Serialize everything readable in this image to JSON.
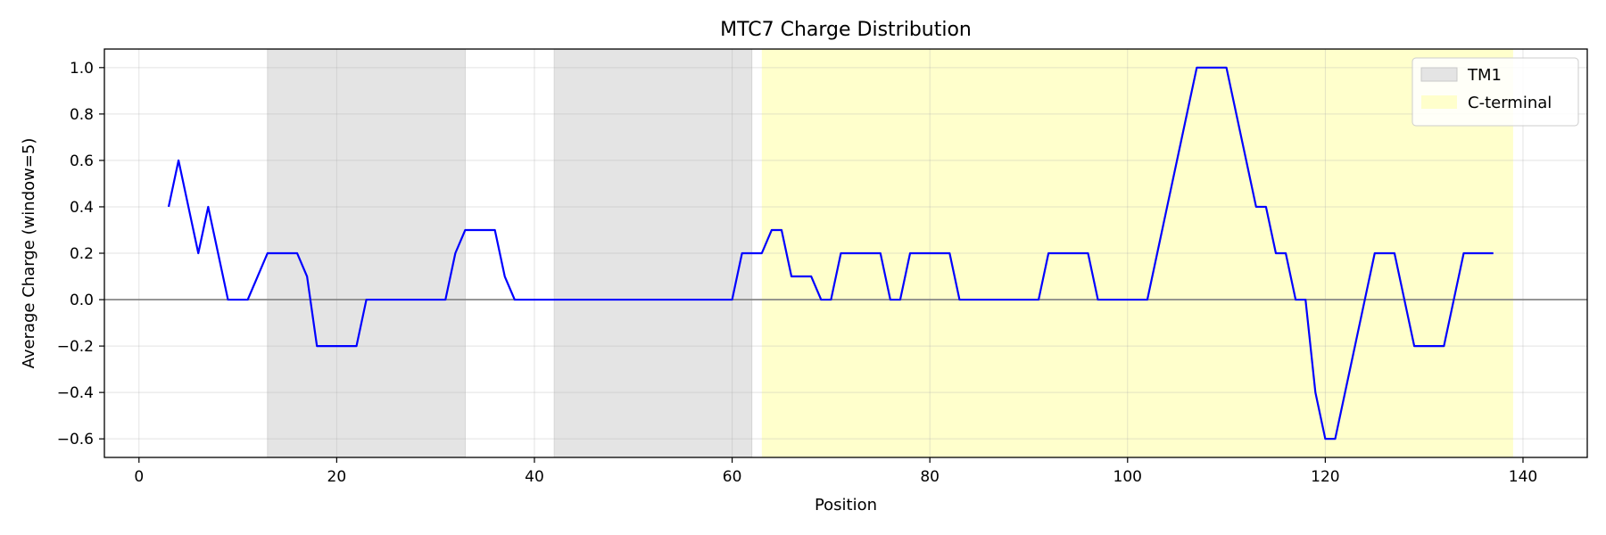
{
  "chart_data": {
    "type": "line",
    "title": "MTC7 Charge Distribution",
    "xlabel": "Position",
    "ylabel": "Average Charge (window=5)",
    "xlim": [
      -3.5,
      146.5
    ],
    "ylim": [
      -0.68,
      1.08
    ],
    "xticks": [
      0,
      20,
      40,
      60,
      80,
      100,
      120,
      140
    ],
    "yticks": [
      -0.6,
      -0.4,
      -0.2,
      0.0,
      0.2,
      0.4,
      0.6,
      0.8,
      1.0
    ],
    "grid": true,
    "legend_position": "top-right",
    "zero_line": 0,
    "regions": [
      {
        "name": "TM1",
        "start": 13,
        "end": 33,
        "color": "#e4e4e4",
        "legend": true
      },
      {
        "name": "",
        "start": 42,
        "end": 62,
        "color": "#e4e4e4",
        "legend": false
      },
      {
        "name": "C-terminal",
        "start": 63,
        "end": 139,
        "color": "#ffffcc",
        "legend": true
      }
    ],
    "series": [
      {
        "color": "#0000ff",
        "x": [
          3,
          4,
          5,
          6,
          7,
          8,
          9,
          10,
          11,
          12,
          13,
          14,
          15,
          16,
          17,
          18,
          19,
          20,
          21,
          22,
          23,
          24,
          25,
          26,
          27,
          28,
          29,
          30,
          31,
          32,
          33,
          34,
          35,
          36,
          37,
          38,
          39,
          40,
          41,
          42,
          43,
          44,
          45,
          46,
          47,
          48,
          49,
          50,
          51,
          52,
          53,
          54,
          55,
          56,
          57,
          58,
          59,
          60,
          61,
          62,
          63,
          64,
          65,
          66,
          67,
          68,
          69,
          70,
          71,
          72,
          73,
          74,
          75,
          76,
          77,
          78,
          79,
          80,
          81,
          82,
          83,
          84,
          85,
          86,
          87,
          88,
          89,
          90,
          91,
          92,
          93,
          94,
          95,
          96,
          97,
          98,
          99,
          100,
          101,
          102,
          103,
          104,
          105,
          106,
          107,
          108,
          109,
          110,
          111,
          112,
          113,
          114,
          115,
          116,
          117,
          118,
          119,
          120,
          121,
          122,
          123,
          124,
          125,
          126,
          127,
          128,
          129,
          130,
          131,
          132,
          133,
          134,
          135,
          136,
          137
        ],
        "y": [
          0.4,
          0.6,
          0.4,
          0.2,
          0.4,
          0.2,
          0.0,
          0.0,
          0.0,
          0.1,
          0.2,
          0.2,
          0.2,
          0.2,
          0.1,
          -0.2,
          -0.2,
          -0.2,
          -0.2,
          -0.2,
          0.0,
          0.0,
          0.0,
          0.0,
          0.0,
          0.0,
          0.0,
          0.0,
          0.0,
          0.2,
          0.3,
          0.3,
          0.3,
          0.3,
          0.1,
          0.0,
          0.0,
          0.0,
          0.0,
          0.0,
          0.0,
          0.0,
          0.0,
          0.0,
          0.0,
          0.0,
          0.0,
          0.0,
          0.0,
          0.0,
          0.0,
          0.0,
          0.0,
          0.0,
          0.0,
          0.0,
          0.0,
          0.0,
          0.2,
          0.2,
          0.2,
          0.3,
          0.3,
          0.1,
          0.1,
          0.1,
          0.0,
          0.0,
          0.2,
          0.2,
          0.2,
          0.2,
          0.2,
          0.0,
          0.0,
          0.2,
          0.2,
          0.2,
          0.2,
          0.2,
          0.0,
          0.0,
          0.0,
          0.0,
          0.0,
          0.0,
          0.0,
          0.0,
          0.0,
          0.2,
          0.2,
          0.2,
          0.2,
          0.2,
          0.0,
          0.0,
          0.0,
          0.0,
          0.0,
          0.0,
          0.2,
          0.4,
          0.6,
          0.8,
          1.0,
          1.0,
          1.0,
          1.0,
          0.8,
          0.6,
          0.4,
          0.4,
          0.2,
          0.2,
          0.0,
          0.0,
          -0.4,
          -0.6,
          -0.6,
          -0.4,
          -0.2,
          0.0,
          0.2,
          0.2,
          0.2,
          0.0,
          -0.2,
          -0.2,
          -0.2,
          -0.2,
          0.0,
          0.2,
          0.2,
          0.2,
          0.2
        ]
      }
    ]
  }
}
